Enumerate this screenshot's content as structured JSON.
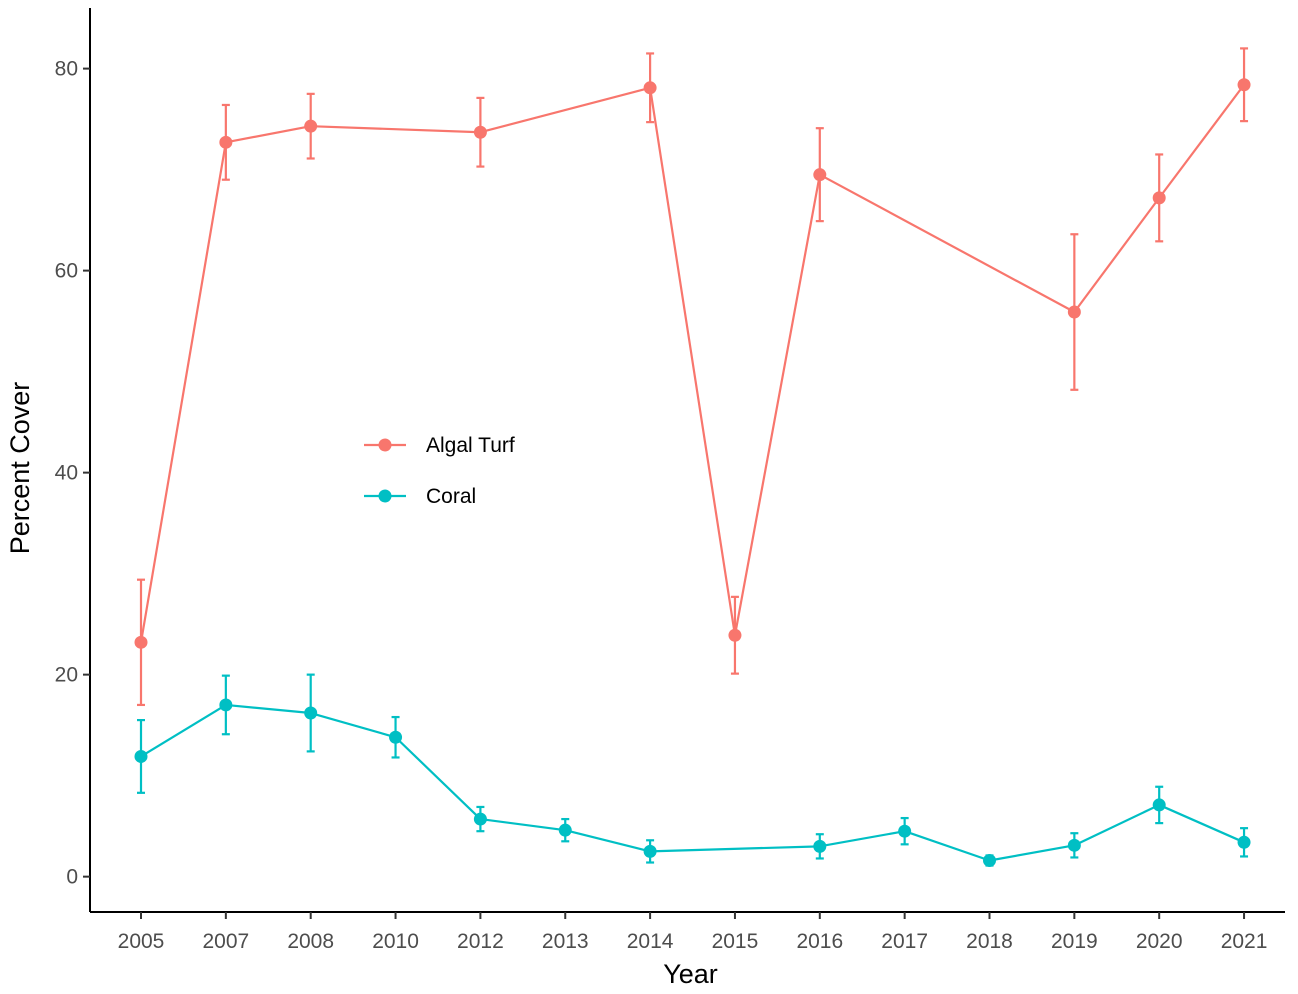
{
  "chart_data": {
    "type": "line",
    "title": "",
    "xlabel": "Year",
    "ylabel": "Percent Cover",
    "categories": [
      "2005",
      "2007",
      "2008",
      "2010",
      "2012",
      "2013",
      "2014",
      "2015",
      "2016",
      "2017",
      "2018",
      "2019",
      "2020",
      "2021"
    ],
    "ylim": [
      -3.5,
      86
    ],
    "yticks": [
      0,
      20,
      40,
      60,
      80
    ],
    "grid": false,
    "legend_position": "inside-center-left",
    "series": [
      {
        "name": "Algal Turf",
        "color": "#F8766D",
        "values": [
          23.2,
          72.7,
          74.3,
          73.7,
          78.1,
          23.9,
          69.5,
          55.9,
          67.2,
          78.4
        ],
        "x": [
          "2005",
          "2007",
          "2008",
          "2012",
          "2014",
          "2015",
          "2016",
          "2019",
          "2020",
          "2021"
        ],
        "error_low": [
          17.0,
          69.0,
          71.1,
          70.3,
          74.7,
          20.1,
          64.9,
          48.2,
          62.9,
          74.8
        ],
        "error_high": [
          29.4,
          76.4,
          77.5,
          77.1,
          81.5,
          27.7,
          74.1,
          63.6,
          71.5,
          82.0
        ]
      },
      {
        "name": "Coral",
        "color": "#00BFC4",
        "values": [
          11.9,
          17.0,
          16.2,
          13.8,
          5.7,
          4.6,
          2.5,
          3.0,
          4.5,
          1.6,
          3.1,
          7.1,
          3.4
        ],
        "x": [
          "2005",
          "2007",
          "2008",
          "2010",
          "2012",
          "2013",
          "2014",
          "2016",
          "2017",
          "2018",
          "2019",
          "2020",
          "2021"
        ],
        "error_low": [
          8.3,
          14.1,
          12.4,
          11.8,
          4.5,
          3.5,
          1.4,
          1.8,
          3.2,
          1.1,
          1.9,
          5.3,
          2.0
        ],
        "error_high": [
          15.5,
          19.9,
          20.0,
          15.8,
          6.9,
          5.7,
          3.6,
          4.2,
          5.8,
          2.1,
          4.3,
          8.9,
          4.8
        ]
      }
    ]
  }
}
